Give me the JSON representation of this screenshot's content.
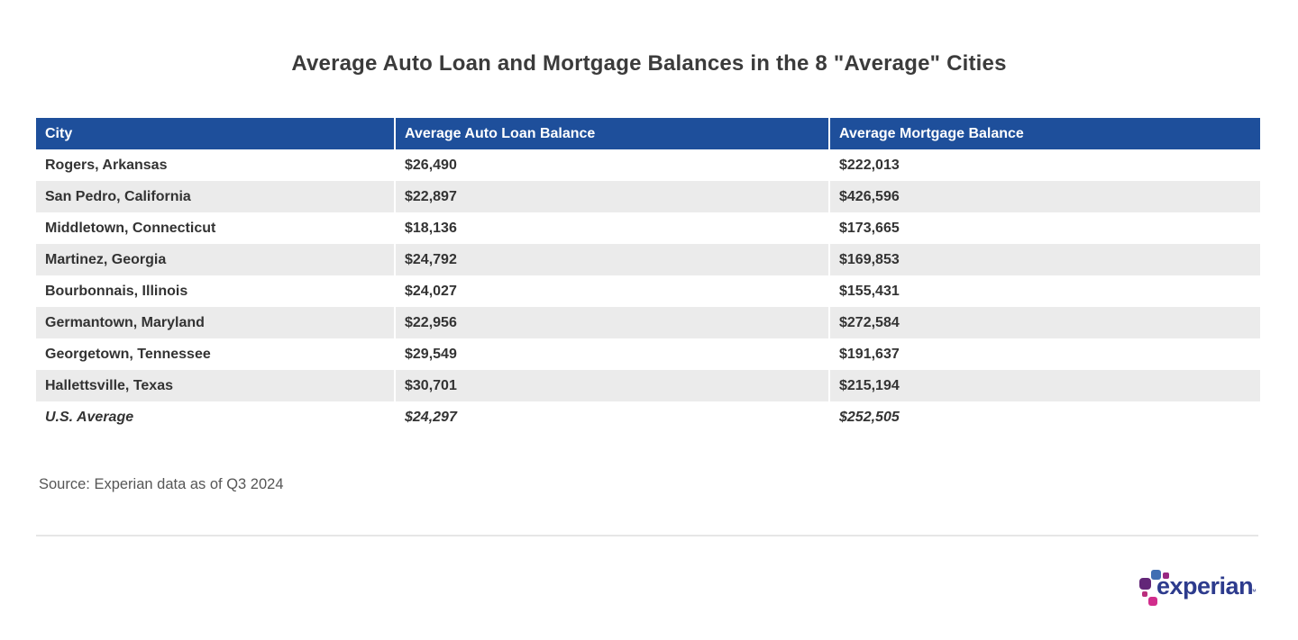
{
  "title": "Average Auto Loan and Mortgage Balances in the 8 \"Average\" Cities",
  "table": {
    "columns": {
      "city": "City",
      "auto": "Average Auto Loan Balance",
      "mortgage": "Average Mortgage Balance"
    },
    "rows": [
      {
        "city": "Rogers, Arkansas",
        "auto": "$26,490",
        "mortgage": "$222,013"
      },
      {
        "city": "San Pedro, California",
        "auto": "$22,897",
        "mortgage": "$426,596"
      },
      {
        "city": "Middletown, Connecticut",
        "auto": "$18,136",
        "mortgage": "$173,665"
      },
      {
        "city": "Martinez, Georgia",
        "auto": "$24,792",
        "mortgage": "$169,853"
      },
      {
        "city": "Bourbonnais, Illinois",
        "auto": "$24,027",
        "mortgage": "$155,431"
      },
      {
        "city": "Germantown, Maryland",
        "auto": "$22,956",
        "mortgage": "$272,584"
      },
      {
        "city": "Georgetown, Tennessee",
        "auto": "$29,549",
        "mortgage": "$191,637"
      },
      {
        "city": "Hallettsville, Texas",
        "auto": "$30,701",
        "mortgage": "$215,194"
      },
      {
        "city": "U.S. Average",
        "auto": "$24,297",
        "mortgage": "$252,505"
      }
    ]
  },
  "source": "Source: Experian data as of Q3 2024",
  "logo": {
    "wordmark": "experian",
    "trademark": "™"
  },
  "colors": {
    "header_blue": "#1e4f9b",
    "stripe_gray": "#ebebeb",
    "body_text": "#333333",
    "title_text": "#3b3b3b",
    "source_text": "#565656",
    "divider_gray": "#e6e6e6",
    "logo_wordmark_indigo": "#2d3b8d",
    "logo_square_blue": "#406eb3",
    "logo_square_plum": "#982881",
    "logo_square_purple": "#632678",
    "logo_square_magenta": "#ba2f7d",
    "logo_square_pink": "#d12d8c"
  },
  "chart_data": {
    "type": "table",
    "title": "Average Auto Loan and Mortgage Balances in the 8 \"Average\" Cities",
    "columns": [
      "City",
      "Average Auto Loan Balance",
      "Average Mortgage Balance"
    ],
    "rows": [
      [
        "Rogers, Arkansas",
        26490,
        222013
      ],
      [
        "San Pedro, California",
        22897,
        426596
      ],
      [
        "Middletown, Connecticut",
        18136,
        173665
      ],
      [
        "Martinez, Georgia",
        24792,
        169853
      ],
      [
        "Bourbonnais, Illinois",
        24027,
        155431
      ],
      [
        "Germantown, Maryland",
        22956,
        272584
      ],
      [
        "Georgetown, Tennessee",
        29549,
        191637
      ],
      [
        "Hallettsville, Texas",
        30701,
        215194
      ],
      [
        "U.S. Average",
        24297,
        252505
      ]
    ],
    "emphasized_row": "U.S. Average",
    "source_note": "Source: Experian data as of Q3 2024",
    "layout": {
      "striped": true,
      "header_background": "#1e4f9b"
    }
  }
}
